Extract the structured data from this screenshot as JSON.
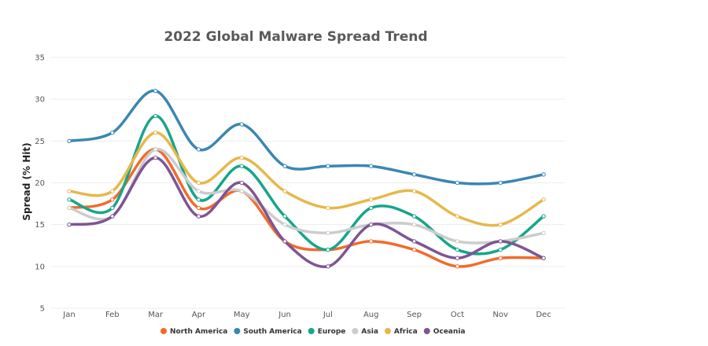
{
  "chart_data": {
    "type": "line",
    "title": "2022 Global Malware Spread Trend",
    "xlabel": "",
    "ylabel": "Spread (% Hit)",
    "ylim": [
      5,
      35
    ],
    "yticks": [
      5,
      10,
      15,
      20,
      25,
      30,
      35
    ],
    "grid": true,
    "legend_position": "bottom",
    "categories": [
      "Jan",
      "Feb",
      "Mar",
      "Apr",
      "May",
      "Jun",
      "Jul",
      "Aug",
      "Sep",
      "Oct",
      "Nov",
      "Dec"
    ],
    "series": [
      {
        "name": "North America",
        "color": "#f26b2c",
        "values": [
          17,
          18,
          24,
          17,
          19,
          13,
          12,
          13,
          12,
          10,
          11,
          11
        ]
      },
      {
        "name": "South America",
        "color": "#3b86b3",
        "values": [
          25,
          26,
          31,
          24,
          27,
          22,
          22,
          22,
          21,
          20,
          20,
          21
        ]
      },
      {
        "name": "Europe",
        "color": "#17a58a",
        "values": [
          18,
          17,
          28,
          18,
          22,
          16,
          12,
          17,
          16,
          12,
          12,
          16
        ]
      },
      {
        "name": "Asia",
        "color": "#cccccc",
        "values": [
          17,
          16,
          24,
          19,
          19,
          15,
          14,
          15,
          15,
          13,
          13,
          14
        ]
      },
      {
        "name": "Africa",
        "color": "#e6b84a",
        "values": [
          19,
          19,
          26,
          20,
          23,
          19,
          17,
          18,
          19,
          16,
          15,
          18
        ]
      },
      {
        "name": "Oceania",
        "color": "#7d5594",
        "values": [
          15,
          16,
          23,
          16,
          20,
          13,
          10,
          15,
          13,
          11,
          13,
          11
        ]
      }
    ]
  }
}
